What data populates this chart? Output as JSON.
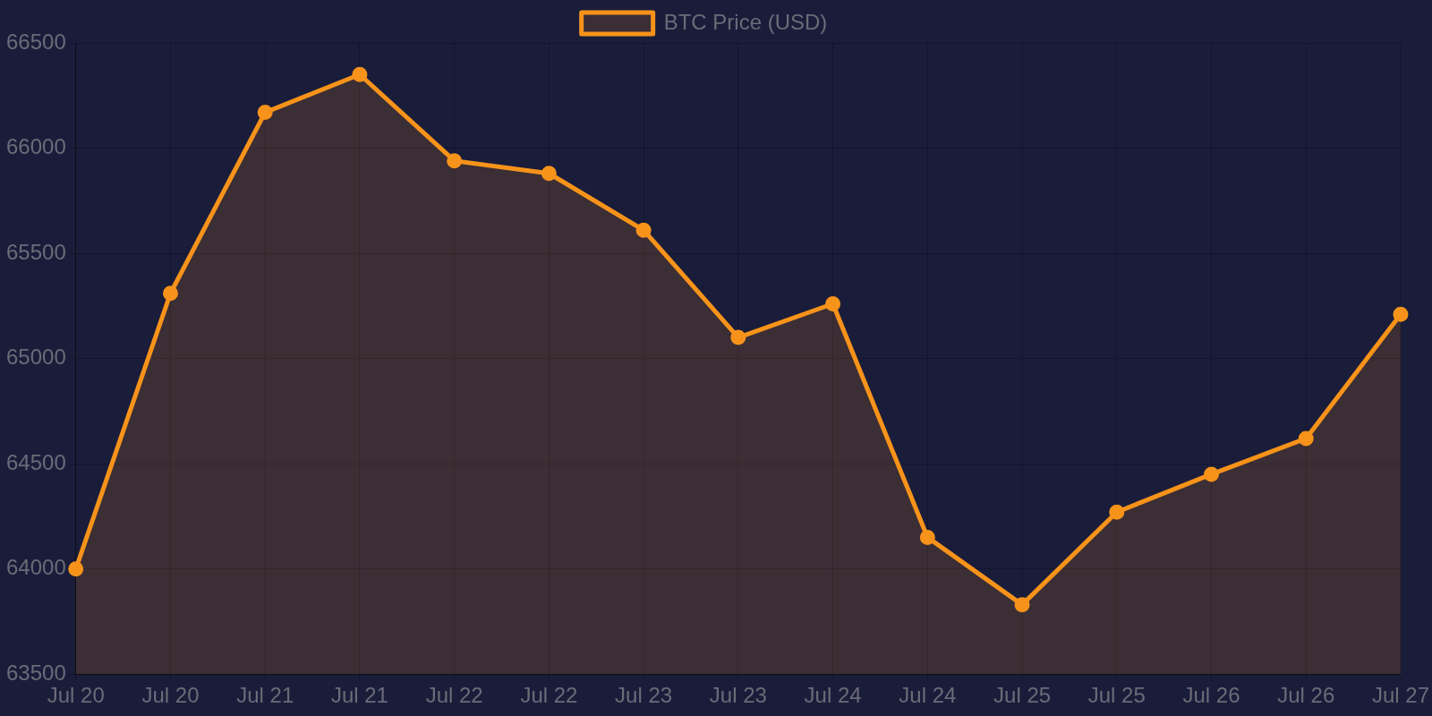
{
  "chart_data": {
    "type": "area",
    "categories": [
      "Jul 20",
      "Jul 20",
      "Jul 21",
      "Jul 21",
      "Jul 22",
      "Jul 22",
      "Jul 23",
      "Jul 23",
      "Jul 24",
      "Jul 24",
      "Jul 25",
      "Jul 25",
      "Jul 26",
      "Jul 26",
      "Jul 27"
    ],
    "series": [
      {
        "name": "BTC Price (USD)",
        "color": "#f7931a",
        "values": [
          64000,
          65310,
          66170,
          66350,
          65940,
          65880,
          65610,
          65100,
          65260,
          64150,
          63830,
          64270,
          64450,
          64620,
          65210
        ]
      }
    ],
    "ylim": [
      63500,
      66500
    ],
    "yticks": [
      63500,
      64000,
      64500,
      65000,
      65500,
      66000,
      66500
    ],
    "grid": true,
    "legend": "top",
    "marker": "circle",
    "line_style": "solid"
  }
}
